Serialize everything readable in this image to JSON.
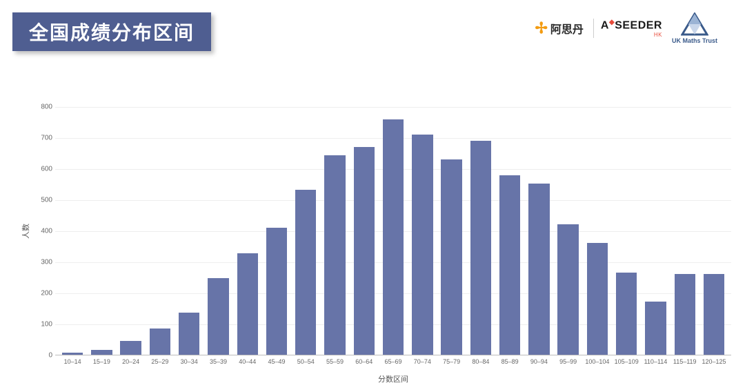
{
  "header": {
    "title": "全国成绩分布区间",
    "title_bg": "#4f5e91",
    "title_color": "#ffffff"
  },
  "logos": {
    "asdan_cn": "阿思丹",
    "seeder": "SEEDER",
    "seeder_prefix": "A",
    "seeder_hk": "HK",
    "ukmt": "UK Maths Trust"
  },
  "chart": {
    "type": "bar",
    "y_title": "人数",
    "x_title": "分数区间",
    "y_min": 0,
    "y_max": 800,
    "y_tick_step": 100,
    "y_ticks": [
      0,
      100,
      200,
      300,
      400,
      500,
      600,
      700,
      800
    ],
    "bar_color": "#6774a8",
    "grid_color": "#eeeeee",
    "axis_color": "#bbbbbb",
    "label_color": "#666666",
    "label_fontsize": 10,
    "title_fontsize": 11,
    "bar_width_ratio": 0.72,
    "background_color": "#ffffff",
    "categories": [
      "10–14",
      "15–19",
      "20–24",
      "25–29",
      "30–34",
      "35–39",
      "40–44",
      "45–49",
      "50–54",
      "55–59",
      "60–64",
      "65–69",
      "70–74",
      "75–79",
      "80–84",
      "85–89",
      "90–94",
      "95–99",
      "100–104",
      "105–109",
      "110–114",
      "115–119",
      "120–125"
    ],
    "values": [
      7,
      15,
      44,
      84,
      135,
      246,
      327,
      408,
      532,
      642,
      670,
      758,
      708,
      630,
      690,
      578,
      552,
      420,
      360,
      265,
      172,
      260,
      260
    ]
  }
}
